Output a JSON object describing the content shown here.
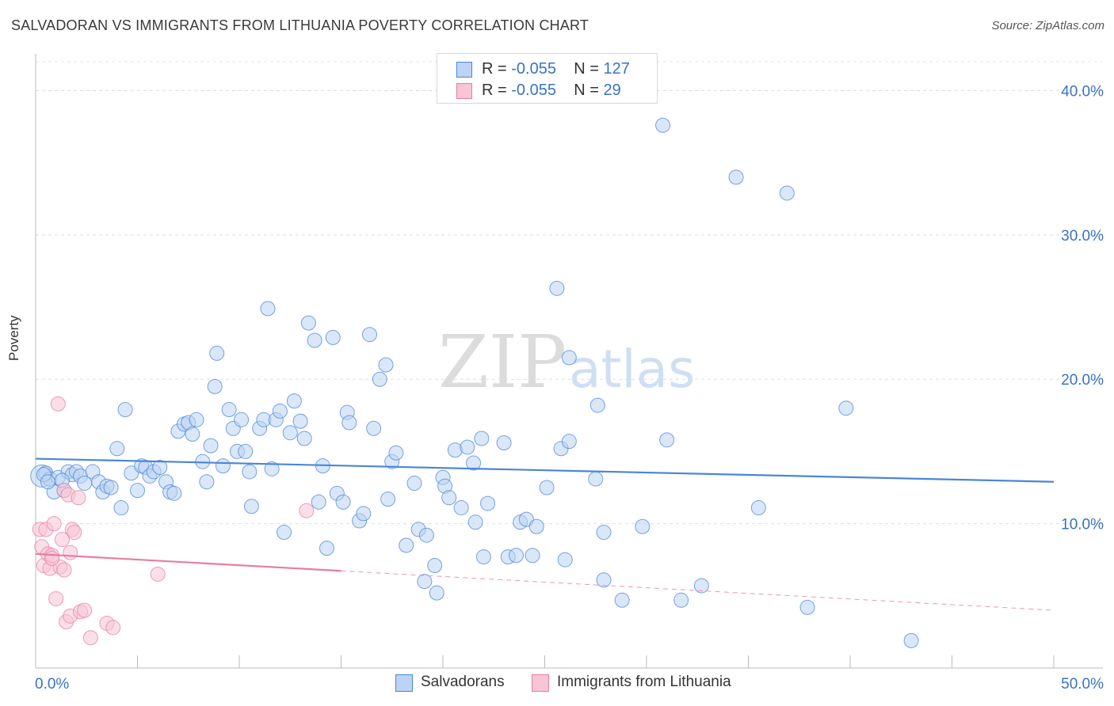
{
  "title": "SALVADORAN VS IMMIGRANTS FROM LITHUANIA POVERTY CORRELATION CHART",
  "source": "Source: ZipAtlas.com",
  "watermark": {
    "zip": "ZIP",
    "atlas": "atlas"
  },
  "legend_top": [
    {
      "r_label": "R = ",
      "r_value": "-0.055",
      "n_label": "N = ",
      "n_value": "127",
      "color": "#4a86d8"
    },
    {
      "r_label": "R = ",
      "r_value": "-0.055",
      "n_label": "N = ",
      "n_value": "29",
      "color": "#e87ca0"
    }
  ],
  "chart_data": {
    "type": "scatter",
    "title": "SALVADORAN VS IMMIGRANTS FROM LITHUANIA POVERTY CORRELATION CHART",
    "xlabel": "",
    "ylabel": "Poverty",
    "xlim": [
      0,
      50
    ],
    "ylim": [
      0,
      42
    ],
    "x_tick_labels": [
      "0.0%",
      "50.0%"
    ],
    "y_ticks": [
      10,
      20,
      30,
      40
    ],
    "y_tick_labels": [
      "10.0%",
      "20.0%",
      "30.0%",
      "40.0%"
    ],
    "grid": "horizontal dashed",
    "legend_position": "top-center and bottom-center",
    "series": [
      {
        "name": "Salvadorans",
        "color": "#4a86d8",
        "fill": "#bcd3f2",
        "r": -0.055,
        "n": 127,
        "trend": {
          "x": [
            0,
            50
          ],
          "y": [
            14.5,
            12.9
          ],
          "dashed_from": null
        },
        "points": [
          [
            0.3,
            13.3
          ],
          [
            0.5,
            13.5
          ],
          [
            0.7,
            13.1
          ],
          [
            0.9,
            12.2
          ],
          [
            1.1,
            13.2
          ],
          [
            1.4,
            12.3
          ],
          [
            1.6,
            13.6
          ],
          [
            1.8,
            13.4
          ],
          [
            2.0,
            13.6
          ],
          [
            2.2,
            13.3
          ],
          [
            2.4,
            12.8
          ],
          [
            2.8,
            13.6
          ],
          [
            3.1,
            12.9
          ],
          [
            3.3,
            12.2
          ],
          [
            3.5,
            12.6
          ],
          [
            3.7,
            12.5
          ],
          [
            4.0,
            15.2
          ],
          [
            4.2,
            11.1
          ],
          [
            4.4,
            17.9
          ],
          [
            4.7,
            13.5
          ],
          [
            5.0,
            12.3
          ],
          [
            5.2,
            14.0
          ],
          [
            5.4,
            13.9
          ],
          [
            5.6,
            13.3
          ],
          [
            5.8,
            13.6
          ],
          [
            6.1,
            13.9
          ],
          [
            6.4,
            12.9
          ],
          [
            6.6,
            12.2
          ],
          [
            6.8,
            12.1
          ],
          [
            7.0,
            16.4
          ],
          [
            7.3,
            16.9
          ],
          [
            7.5,
            17.0
          ],
          [
            7.7,
            16.2
          ],
          [
            7.9,
            17.2
          ],
          [
            8.2,
            14.3
          ],
          [
            8.4,
            12.9
          ],
          [
            8.6,
            15.4
          ],
          [
            8.8,
            19.5
          ],
          [
            8.9,
            21.8
          ],
          [
            9.2,
            14.0
          ],
          [
            9.5,
            17.9
          ],
          [
            9.7,
            16.6
          ],
          [
            9.9,
            15.0
          ],
          [
            10.1,
            17.2
          ],
          [
            10.3,
            15.0
          ],
          [
            10.5,
            13.6
          ],
          [
            10.6,
            11.2
          ],
          [
            11.0,
            16.6
          ],
          [
            11.2,
            17.2
          ],
          [
            11.4,
            24.9
          ],
          [
            11.6,
            13.8
          ],
          [
            11.8,
            17.2
          ],
          [
            12.0,
            17.8
          ],
          [
            12.2,
            9.4
          ],
          [
            12.5,
            16.3
          ],
          [
            12.7,
            18.5
          ],
          [
            13.0,
            17.1
          ],
          [
            13.2,
            15.9
          ],
          [
            13.4,
            23.9
          ],
          [
            13.7,
            22.7
          ],
          [
            13.9,
            11.5
          ],
          [
            14.1,
            14.0
          ],
          [
            14.3,
            8.3
          ],
          [
            14.6,
            22.9
          ],
          [
            14.8,
            12.1
          ],
          [
            15.1,
            11.5
          ],
          [
            15.3,
            17.7
          ],
          [
            15.4,
            17.0
          ],
          [
            15.9,
            10.2
          ],
          [
            16.1,
            10.7
          ],
          [
            16.4,
            23.1
          ],
          [
            16.6,
            16.6
          ],
          [
            16.9,
            20.0
          ],
          [
            17.2,
            21.0
          ],
          [
            17.3,
            11.7
          ],
          [
            17.5,
            14.3
          ],
          [
            17.7,
            14.9
          ],
          [
            18.2,
            8.5
          ],
          [
            18.6,
            12.8
          ],
          [
            18.8,
            9.6
          ],
          [
            19.2,
            9.2
          ],
          [
            19.1,
            6.0
          ],
          [
            19.6,
            7.1
          ],
          [
            19.7,
            5.2
          ],
          [
            20.0,
            13.2
          ],
          [
            20.1,
            12.6
          ],
          [
            20.3,
            11.8
          ],
          [
            20.6,
            15.1
          ],
          [
            20.9,
            11.1
          ],
          [
            21.2,
            15.3
          ],
          [
            21.5,
            14.2
          ],
          [
            21.6,
            10.1
          ],
          [
            22.0,
            7.7
          ],
          [
            21.9,
            15.9
          ],
          [
            22.2,
            11.4
          ],
          [
            23.0,
            15.6
          ],
          [
            23.2,
            7.7
          ],
          [
            23.6,
            7.8
          ],
          [
            23.8,
            10.1
          ],
          [
            24.1,
            10.3
          ],
          [
            24.4,
            7.8
          ],
          [
            24.6,
            9.8
          ],
          [
            25.1,
            12.5
          ],
          [
            25.6,
            26.3
          ],
          [
            25.8,
            15.2
          ],
          [
            26.0,
            7.5
          ],
          [
            26.2,
            15.7
          ],
          [
            26.2,
            21.5
          ],
          [
            27.5,
            13.1
          ],
          [
            27.6,
            18.2
          ],
          [
            27.9,
            9.4
          ],
          [
            27.9,
            6.1
          ],
          [
            28.8,
            4.7
          ],
          [
            29.8,
            9.8
          ],
          [
            30.8,
            37.6
          ],
          [
            31.0,
            15.8
          ],
          [
            31.7,
            4.7
          ],
          [
            32.7,
            5.7
          ],
          [
            34.4,
            34.0
          ],
          [
            35.5,
            11.1
          ],
          [
            36.9,
            32.9
          ],
          [
            37.9,
            4.2
          ],
          [
            39.8,
            18.0
          ],
          [
            43.0,
            1.9
          ],
          [
            0.4,
            13.4
          ],
          [
            0.6,
            12.9
          ],
          [
            1.3,
            13.0
          ]
        ]
      },
      {
        "name": "Immigrants from Lithuania",
        "color": "#e87ca0",
        "fill": "#f7c5d6",
        "r": -0.055,
        "n": 29,
        "trend": {
          "x": [
            0,
            50
          ],
          "y": [
            7.9,
            4.0
          ],
          "dashed_from": 15
        },
        "points": [
          [
            0.2,
            9.6
          ],
          [
            0.3,
            8.4
          ],
          [
            0.4,
            7.1
          ],
          [
            0.5,
            9.6
          ],
          [
            0.6,
            7.9
          ],
          [
            0.7,
            6.9
          ],
          [
            0.8,
            7.8
          ],
          [
            0.9,
            10.0
          ],
          [
            1.0,
            4.8
          ],
          [
            1.1,
            18.3
          ],
          [
            1.2,
            7.0
          ],
          [
            1.3,
            8.9
          ],
          [
            1.4,
            12.3
          ],
          [
            1.5,
            3.2
          ],
          [
            1.6,
            12.0
          ],
          [
            1.7,
            3.6
          ],
          [
            1.7,
            8.0
          ],
          [
            1.8,
            9.6
          ],
          [
            1.9,
            9.4
          ],
          [
            2.1,
            11.8
          ],
          [
            2.2,
            3.9
          ],
          [
            2.4,
            4.0
          ],
          [
            2.7,
            2.1
          ],
          [
            3.5,
            3.1
          ],
          [
            3.8,
            2.8
          ],
          [
            6.0,
            6.5
          ],
          [
            13.3,
            10.9
          ],
          [
            0.8,
            7.6
          ],
          [
            1.4,
            6.8
          ]
        ]
      }
    ]
  },
  "legend_bottom": [
    {
      "label": "Salvadorans",
      "color": "#4a86d8",
      "fill": "#bcd3f2"
    },
    {
      "label": "Immigrants from Lithuania",
      "color": "#e87ca0",
      "fill": "#f7c5d6"
    }
  ]
}
